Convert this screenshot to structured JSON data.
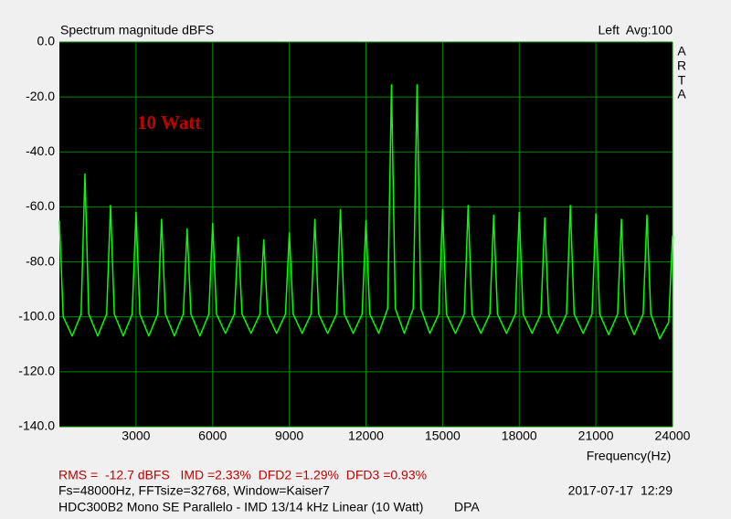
{
  "chart_data": {
    "type": "line",
    "title": "Spectrum magnitude dBFS",
    "channel_info": "Left  Avg:100",
    "brand_letters": [
      "A",
      "R",
      "T",
      "A"
    ],
    "annotation": "10 Watt",
    "x_label": "Frequency(Hz)",
    "stats": "RMS =  -12.7 dBFS   IMD =2.33%  DFD2 =1.29%  DFD3 =0.93%",
    "settings": "Fs=48000Hz, FFTsize=32768, Window=Kaiser7",
    "timestamp": "2017-07-17  12:29",
    "description": "HDC300B2 Mono SE Parallelo - IMD 13/14 kHz Linear (10 Watt)",
    "author": "DPA",
    "xlim": [
      0,
      24000
    ],
    "xticks": [
      3000,
      6000,
      9000,
      12000,
      15000,
      18000,
      21000,
      24000
    ],
    "ylim": [
      -140,
      0
    ],
    "yticks": [
      {
        "value": 0,
        "label": "0.0"
      },
      {
        "value": -20,
        "label": "-20.0"
      },
      {
        "value": -40,
        "label": "-40.0"
      },
      {
        "value": -60,
        "label": "-60.0"
      },
      {
        "value": -80,
        "label": "-80.0"
      },
      {
        "value": -100,
        "label": "-100.0"
      },
      {
        "value": -120,
        "label": "-120.0"
      },
      {
        "value": -140,
        "label": "-140.0"
      }
    ],
    "grid": true,
    "series": [
      {
        "name": "Left",
        "color": "#00ff00",
        "x": [
          0,
          150,
          500,
          850,
          1000,
          1150,
          1500,
          1850,
          2000,
          2150,
          2500,
          2850,
          3000,
          3150,
          3500,
          3850,
          4000,
          4150,
          4500,
          4850,
          5000,
          5150,
          5500,
          5850,
          6000,
          6150,
          6500,
          6850,
          7000,
          7150,
          7500,
          7850,
          8000,
          8150,
          8500,
          8850,
          9000,
          9150,
          9500,
          9850,
          10000,
          10150,
          10500,
          10850,
          11000,
          11150,
          11500,
          11850,
          12000,
          12150,
          12500,
          12850,
          13000,
          13150,
          13500,
          13850,
          14000,
          14150,
          14500,
          14850,
          15000,
          15150,
          15500,
          15850,
          16000,
          16150,
          16500,
          16850,
          17000,
          17150,
          17500,
          17850,
          18000,
          18150,
          18500,
          18850,
          19000,
          19150,
          19500,
          19850,
          20000,
          20150,
          20500,
          20850,
          21000,
          21150,
          21500,
          21850,
          22000,
          22150,
          22500,
          22850,
          23000,
          23150,
          23500,
          23850,
          24000
        ],
        "values": [
          -65,
          -100,
          -107,
          -99,
          -48,
          -99,
          -107,
          -99,
          -59.5,
          -99,
          -107,
          -99,
          -62,
          -99,
          -107,
          -99,
          -64.5,
          -99,
          -107,
          -99,
          -68,
          -99,
          -107,
          -99,
          -66,
          -99,
          -106,
          -99,
          -71,
          -99,
          -106,
          -99,
          -72,
          -99,
          -106,
          -99,
          -69.5,
          -99,
          -106,
          -99,
          -64.5,
          -99,
          -106,
          -99,
          -61,
          -99,
          -106,
          -99,
          -65,
          -99,
          -106,
          -97,
          -15.6,
          -97,
          -106,
          -97,
          -15.6,
          -97,
          -106,
          -99,
          -61,
          -99,
          -106,
          -99,
          -59.5,
          -99,
          -106,
          -99,
          -63,
          -99,
          -106,
          -99,
          -62,
          -99,
          -106,
          -99,
          -64,
          -99,
          -106,
          -99,
          -59.5,
          -99,
          -106,
          -99,
          -62.5,
          -99,
          -106.5,
          -99,
          -64.5,
          -99,
          -106.5,
          -99,
          -63,
          -99,
          -108,
          -102,
          -70.5
        ]
      }
    ]
  }
}
